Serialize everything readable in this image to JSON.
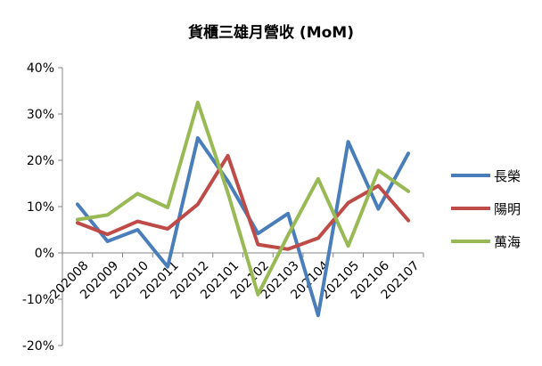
{
  "chart_data": {
    "type": "line",
    "title": "貨櫃三雄月營收 (MoM)",
    "categories": [
      "202008",
      "202009",
      "202010",
      "202011",
      "202012",
      "202101",
      "202102",
      "202103",
      "202104",
      "202105",
      "202106",
      "202107"
    ],
    "y_ticks": [
      "40%",
      "30%",
      "20%",
      "10%",
      "0%",
      "-10%",
      "-20%"
    ],
    "ylim": [
      -20,
      40
    ],
    "grid": false,
    "legend_position": "right",
    "series": [
      {
        "name": "長榮",
        "color": "#4a7ebb",
        "values": [
          10.5,
          2.5,
          5.0,
          -3.0,
          24.8,
          15.5,
          4.2,
          8.5,
          -13.5,
          24.0,
          9.5,
          21.5
        ]
      },
      {
        "name": "陽明",
        "color": "#be4b48",
        "values": [
          6.5,
          4.0,
          6.8,
          5.2,
          10.5,
          21.0,
          1.8,
          0.8,
          3.2,
          10.8,
          14.5,
          7.0
        ]
      },
      {
        "name": "萬海",
        "color": "#98b954",
        "values": [
          7.2,
          8.2,
          12.8,
          9.8,
          32.5,
          13.0,
          -9.0,
          3.8,
          16.0,
          1.5,
          17.8,
          13.3
        ]
      }
    ]
  }
}
